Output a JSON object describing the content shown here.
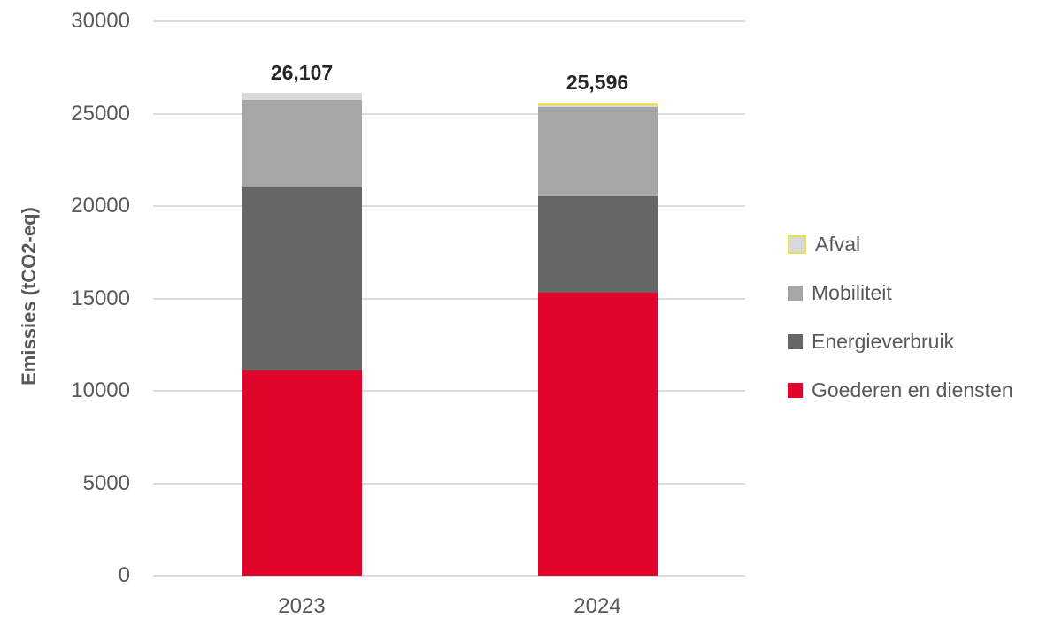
{
  "chart_data": {
    "type": "bar",
    "subtype": "stacked-column",
    "title": "",
    "xlabel": "",
    "ylabel": "Emissies (tCO2-eq)",
    "ylim": [
      0,
      30000
    ],
    "yticks": [
      0,
      5000,
      10000,
      15000,
      20000,
      25000,
      30000
    ],
    "grid": "horizontal",
    "legend_position": "right",
    "categories": [
      "2023",
      "2024"
    ],
    "series": [
      {
        "name": "Goederen en diensten",
        "color": "#e2052b",
        "values": [
          11100,
          15300
        ]
      },
      {
        "name": "Energieverbruik",
        "color": "#666666",
        "values": [
          9910,
          5220
        ]
      },
      {
        "name": "Mobiliteit",
        "color": "#a6a6a6",
        "values": [
          4740,
          4830
        ]
      },
      {
        "name": "Afval",
        "color": "#d9d9d9",
        "values": [
          357,
          246
        ],
        "legend_accent_border": "#e4df5c"
      }
    ],
    "totals": [
      26107,
      25596
    ],
    "total_labels": [
      "26,107",
      "25,596"
    ],
    "bar_accents": [
      null,
      {
        "top_border_color": "#e7e25a"
      }
    ],
    "colors": {
      "gridline": "#dcdcdc",
      "axis_text": "#595959",
      "total_label_text": "#262626",
      "background": "#ffffff"
    }
  }
}
